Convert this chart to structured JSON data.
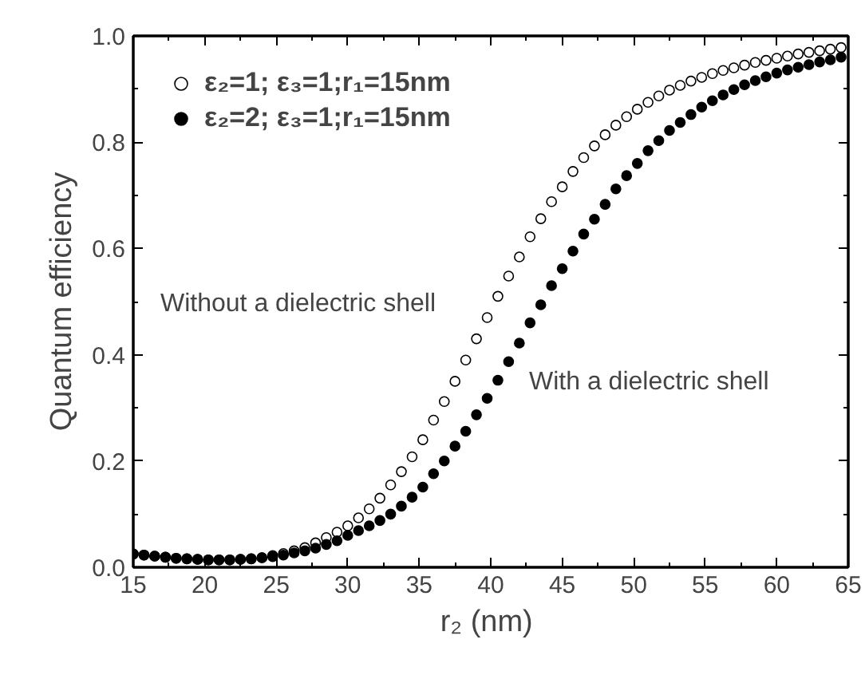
{
  "chart_data": {
    "type": "scatter",
    "xlabel": "r₂  (nm)",
    "ylabel": "Quantum efficiency",
    "x": [
      15,
      15.75,
      16.5,
      17.25,
      18,
      18.75,
      19.5,
      20.25,
      21,
      21.75,
      22.5,
      23.25,
      24,
      24.75,
      25.5,
      26.25,
      27,
      27.75,
      28.5,
      29.25,
      30,
      30.75,
      31.5,
      32.25,
      33,
      33.75,
      34.5,
      35.25,
      36,
      36.75,
      37.5,
      38.25,
      39,
      39.75,
      40.5,
      41.25,
      42,
      42.75,
      43.5,
      44.25,
      45,
      45.75,
      46.5,
      47.25,
      48,
      48.75,
      49.5,
      50.25,
      51,
      51.75,
      52.5,
      53.25,
      54,
      54.75,
      55.5,
      56.25,
      57,
      57.75,
      58.5,
      59.25,
      60,
      60.75,
      61.5,
      62.25,
      63,
      63.75,
      64.5
    ],
    "series": [
      {
        "name": "ε₂=1; ε₃=1;r₁=15nm",
        "color": "#ffffff",
        "values": [
          0.025,
          0.023,
          0.021,
          0.019,
          0.017,
          0.016,
          0.015,
          0.014,
          0.014,
          0.014,
          0.015,
          0.016,
          0.018,
          0.022,
          0.026,
          0.031,
          0.037,
          0.046,
          0.056,
          0.066,
          0.078,
          0.093,
          0.11,
          0.13,
          0.155,
          0.18,
          0.208,
          0.24,
          0.277,
          0.312,
          0.35,
          0.39,
          0.43,
          0.47,
          0.51,
          0.548,
          0.584,
          0.622,
          0.656,
          0.688,
          0.716,
          0.745,
          0.771,
          0.793,
          0.814,
          0.832,
          0.848,
          0.862,
          0.875,
          0.887,
          0.898,
          0.907,
          0.915,
          0.922,
          0.929,
          0.935,
          0.94,
          0.945,
          0.95,
          0.954,
          0.958,
          0.962,
          0.966,
          0.969,
          0.972,
          0.975,
          0.978
        ]
      },
      {
        "name": "ε₂=2; ε₃=1;r₁=15nm",
        "color": "#000000",
        "values": [
          0.025,
          0.023,
          0.021,
          0.019,
          0.017,
          0.016,
          0.015,
          0.014,
          0.014,
          0.014,
          0.015,
          0.016,
          0.018,
          0.02,
          0.023,
          0.027,
          0.031,
          0.036,
          0.043,
          0.05,
          0.06,
          0.069,
          0.078,
          0.088,
          0.1,
          0.115,
          0.132,
          0.151,
          0.176,
          0.2,
          0.228,
          0.256,
          0.287,
          0.318,
          0.352,
          0.387,
          0.422,
          0.46,
          0.494,
          0.53,
          0.562,
          0.595,
          0.627,
          0.655,
          0.683,
          0.712,
          0.737,
          0.76,
          0.784,
          0.803,
          0.822,
          0.837,
          0.852,
          0.866,
          0.878,
          0.889,
          0.899,
          0.908,
          0.916,
          0.923,
          0.93,
          0.936,
          0.941,
          0.946,
          0.951,
          0.955,
          0.96
        ]
      }
    ],
    "xlim": [
      15,
      65
    ],
    "xticks": [
      15,
      20,
      25,
      30,
      35,
      40,
      45,
      50,
      55,
      60,
      65
    ],
    "ylim": [
      0,
      1
    ],
    "yticks": [
      {
        "value": 0,
        "label": "0.0"
      },
      {
        "value": 0.2,
        "label": "0.2"
      },
      {
        "value": 0.4,
        "label": "0.4"
      },
      {
        "value": 0.6,
        "label": "0.6"
      },
      {
        "value": 0.8,
        "label": "0.8"
      },
      {
        "value": 1,
        "label": "1.0"
      }
    ],
    "annotations": [
      "Without a dielectric shell",
      "With a dielectric shell"
    ],
    "marker": "circle",
    "grid": false,
    "legend": "top left"
  }
}
